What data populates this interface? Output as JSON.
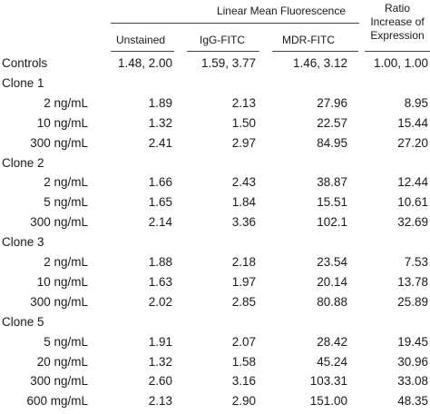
{
  "header": {
    "group_title": "Linear Mean Fluorescence",
    "col_unstained": "Unstained",
    "col_igg": "IgG-FITC",
    "col_mdr": "MDR-FITC",
    "col_ratio_l1": "Ratio",
    "col_ratio_l2": "Increase of",
    "col_ratio_l3": "Expression"
  },
  "rows": [
    {
      "label": "Controls",
      "unstained": "1.48, 2.00",
      "igg": "1.59, 3.77",
      "mdr": "1.46, 3.12",
      "ratio": "1.00, 1.00"
    },
    {
      "label": "Clone 1"
    },
    {
      "label": "2 ng/mL",
      "unstained": "1.89",
      "igg": "2.13",
      "mdr": "27.96",
      "ratio": "8.95"
    },
    {
      "label": "10 ng/mL",
      "unstained": "1.32",
      "igg": "1.50",
      "mdr": "22.57",
      "ratio": "15.44"
    },
    {
      "label": "300 ng/mL",
      "unstained": "2.41",
      "igg": "2.97",
      "mdr": "84.95",
      "ratio": "27.20"
    },
    {
      "label": "Clone 2"
    },
    {
      "label": "2 ng/mL",
      "unstained": "1.66",
      "igg": "2.43",
      "mdr": "38.87",
      "ratio": "12.44"
    },
    {
      "label": "5 ng/mL",
      "unstained": "1.65",
      "igg": "1.84",
      "mdr": "15.51",
      "ratio": "10.61"
    },
    {
      "label": "300 ng/mL",
      "unstained": "2.14",
      "igg": "3.36",
      "mdr": "102.1",
      "ratio": "32.69"
    },
    {
      "label": "Clone 3"
    },
    {
      "label": "2 ng/mL",
      "unstained": "1.88",
      "igg": "2.18",
      "mdr": "23.54",
      "ratio": "7.53"
    },
    {
      "label": "10 ng/mL",
      "unstained": "1.63",
      "igg": "1.97",
      "mdr": "20.14",
      "ratio": "13.78"
    },
    {
      "label": "300 ng/mL",
      "unstained": "2.02",
      "igg": "2.85",
      "mdr": "80.88",
      "ratio": "25.89"
    },
    {
      "label": "Clone 5"
    },
    {
      "label": "5 ng/mL",
      "unstained": "1.91",
      "igg": "2.07",
      "mdr": "28.42",
      "ratio": "19.45"
    },
    {
      "label": "20 ng/mL",
      "unstained": "1.32",
      "igg": "1.58",
      "mdr": "45.24",
      "ratio": "30.96"
    },
    {
      "label": "300 ng/mL",
      "unstained": "2.60",
      "igg": "3.16",
      "mdr": "103.31",
      "ratio": "33.08"
    },
    {
      "label": "600 mg/mL",
      "unstained": "2.13",
      "igg": "2.90",
      "mdr": "151.00",
      "ratio": "48.35"
    }
  ]
}
